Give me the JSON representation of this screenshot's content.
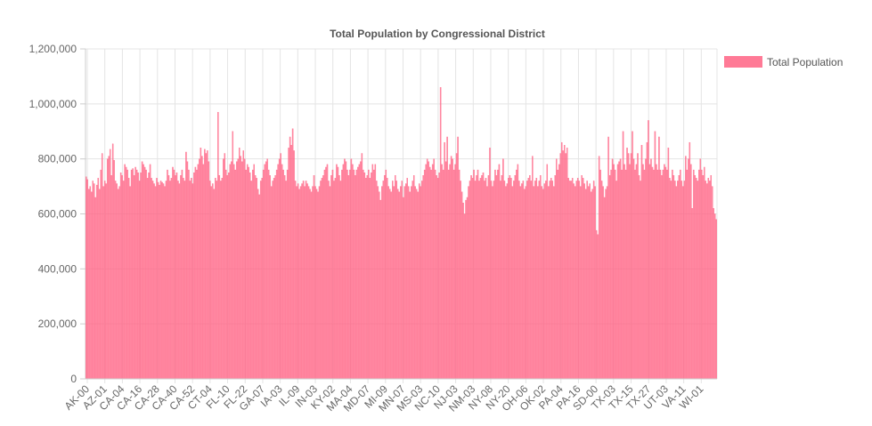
{
  "chart_data": {
    "type": "bar",
    "title": "Total Population by Congressional District",
    "xlabel": "",
    "ylabel": "",
    "ylim": [
      0,
      1200000
    ],
    "yticks": [
      0,
      200000,
      400000,
      600000,
      800000,
      1000000,
      1200000
    ],
    "ytick_labels": [
      "0",
      "200,000",
      "400,000",
      "600,000",
      "800,000",
      "1,000,000",
      "1,200,000"
    ],
    "xtick_labels": [
      "AK-00",
      "AZ-01",
      "CA-04",
      "CA-16",
      "CA-28",
      "CA-40",
      "CA-52",
      "CT-04",
      "FL-10",
      "FL-22",
      "GA-07",
      "IA-03",
      "IL-09",
      "IN-03",
      "KY-02",
      "MA-04",
      "MD-07",
      "MI-09",
      "MN-07",
      "MS-03",
      "NC-10",
      "NJ-03",
      "NM-03",
      "NY-08",
      "NY-20",
      "OH-06",
      "OK-02",
      "PA-04",
      "PA-16",
      "SD-00",
      "TX-03",
      "TX-15",
      "TX-27",
      "UT-03",
      "VA-11",
      "WI-01"
    ],
    "grid": true,
    "legend": "top-right",
    "series": [
      {
        "name": "Total Population",
        "color": "#ff6384",
        "values": [
          735000,
          725000,
          690000,
          700000,
          680000,
          720000,
          710000,
          660000,
          705000,
          730000,
          690000,
          760000,
          820000,
          700000,
          720000,
          710000,
          800000,
          810000,
          835000,
          740000,
          855000,
          795000,
          720000,
          710000,
          690000,
          700000,
          750000,
          740000,
          720000,
          780000,
          770000,
          760000,
          730000,
          700000,
          760000,
          765000,
          740000,
          770000,
          760000,
          750000,
          720000,
          750000,
          790000,
          780000,
          770000,
          760000,
          730000,
          750000,
          780000,
          730000,
          720000,
          710000,
          700000,
          730000,
          715000,
          705000,
          720000,
          715000,
          710000,
          700000,
          720000,
          760000,
          740000,
          720000,
          730000,
          770000,
          760000,
          740000,
          750000,
          720000,
          710000,
          740000,
          760000,
          730000,
          720000,
          825000,
          790000,
          760000,
          720000,
          730000,
          710000,
          750000,
          770000,
          760000,
          780000,
          800000,
          840000,
          810000,
          780000,
          835000,
          820000,
          830000,
          790000,
          720000,
          700000,
          710000,
          690000,
          730000,
          720000,
          970000,
          740000,
          720000,
          730000,
          800000,
          820000,
          760000,
          740000,
          750000,
          780000,
          790000,
          900000,
          780000,
          760000,
          790000,
          800000,
          840000,
          810000,
          790000,
          830000,
          800000,
          760000,
          780000,
          770000,
          750000,
          720000,
          760000,
          780000,
          740000,
          730000,
          690000,
          670000,
          720000,
          730000,
          760000,
          780000,
          790000,
          800000,
          760000,
          740000,
          700000,
          720000,
          730000,
          740000,
          760000,
          780000,
          800000,
          820000,
          780000,
          760000,
          740000,
          720000,
          760000,
          840000,
          880000,
          850000,
          910000,
          830000,
          720000,
          700000,
          710000,
          690000,
          700000,
          710000,
          720000,
          700000,
          720000,
          710000,
          700000,
          690000,
          680000,
          700000,
          740000,
          700000,
          690000,
          680000,
          700000,
          720000,
          730000,
          740000,
          760000,
          770000,
          780000,
          720000,
          700000,
          740000,
          760000,
          720000,
          730000,
          780000,
          770000,
          740000,
          720000,
          760000,
          780000,
          800000,
          790000,
          760000,
          740000,
          760000,
          800000,
          780000,
          760000,
          740000,
          760000,
          770000,
          780000,
          790000,
          820000,
          760000,
          750000,
          730000,
          740000,
          760000,
          730000,
          750000,
          780000,
          760000,
          780000,
          720000,
          700000,
          680000,
          650000,
          700000,
          720000,
          740000,
          760000,
          730000,
          700000,
          690000,
          680000,
          720000,
          700000,
          740000,
          720000,
          690000,
          680000,
          700000,
          720000,
          660000,
          700000,
          710000,
          730000,
          700000,
          680000,
          700000,
          720000,
          740000,
          700000,
          690000,
          680000,
          710000,
          700000,
          720000,
          740000,
          760000,
          780000,
          800000,
          790000,
          770000,
          760000,
          780000,
          800000,
          760000,
          740000,
          730000,
          750000,
          1060000,
          780000,
          760000,
          860000,
          790000,
          880000,
          760000,
          780000,
          810000,
          800000,
          760000,
          780000,
          820000,
          880000,
          760000,
          720000,
          680000,
          640000,
          600000,
          650000,
          660000,
          700000,
          720000,
          740000,
          730000,
          760000,
          720000,
          740000,
          760000,
          720000,
          730000,
          740000,
          750000,
          720000,
          730000,
          700000,
          740000,
          840000,
          720000,
          700000,
          720000,
          760000,
          740000,
          760000,
          780000,
          720000,
          740000,
          800000,
          720000,
          700000,
          710000,
          730000,
          740000,
          730000,
          700000,
          720000,
          740000,
          760000,
          780000,
          720000,
          700000,
          710000,
          720000,
          690000,
          700000,
          720000,
          730000,
          740000,
          720000,
          810000,
          700000,
          720000,
          730000,
          700000,
          720000,
          740000,
          700000,
          690000,
          710000,
          720000,
          780000,
          700000,
          720000,
          730000,
          720000,
          700000,
          740000,
          800000,
          760000,
          780000,
          820000,
          860000,
          830000,
          850000,
          820000,
          840000,
          730000,
          720000,
          720000,
          730000,
          710000,
          700000,
          720000,
          730000,
          720000,
          700000,
          740000,
          730000,
          710000,
          690000,
          720000,
          700000,
          710000,
          680000,
          690000,
          720000,
          700000,
          540000,
          525000,
          810000,
          760000,
          720000,
          700000,
          660000,
          690000,
          700000,
          880000,
          740000,
          760000,
          800000,
          780000,
          760000,
          720000,
          780000,
          790000,
          800000,
          760000,
          900000,
          780000,
          760000,
          840000,
          820000,
          780000,
          820000,
          900000,
          800000,
          760000,
          780000,
          820000,
          740000,
          720000,
          850000,
          780000,
          760000,
          800000,
          860000,
          940000,
          780000,
          800000,
          770000,
          760000,
          900000,
          780000,
          760000,
          880000,
          760000,
          740000,
          760000,
          780000,
          770000,
          760000,
          840000,
          730000,
          720000,
          760000,
          740000,
          720000,
          700000,
          720000,
          740000,
          760000,
          720000,
          700000,
          720000,
          810000,
          760000,
          800000,
          860000,
          780000,
          620000,
          760000,
          740000,
          730000,
          720000,
          760000,
          800000,
          760000,
          740000,
          770000,
          720000,
          710000,
          730000,
          720000,
          740000,
          700000,
          620000,
          600000,
          580000
        ]
      }
    ]
  }
}
